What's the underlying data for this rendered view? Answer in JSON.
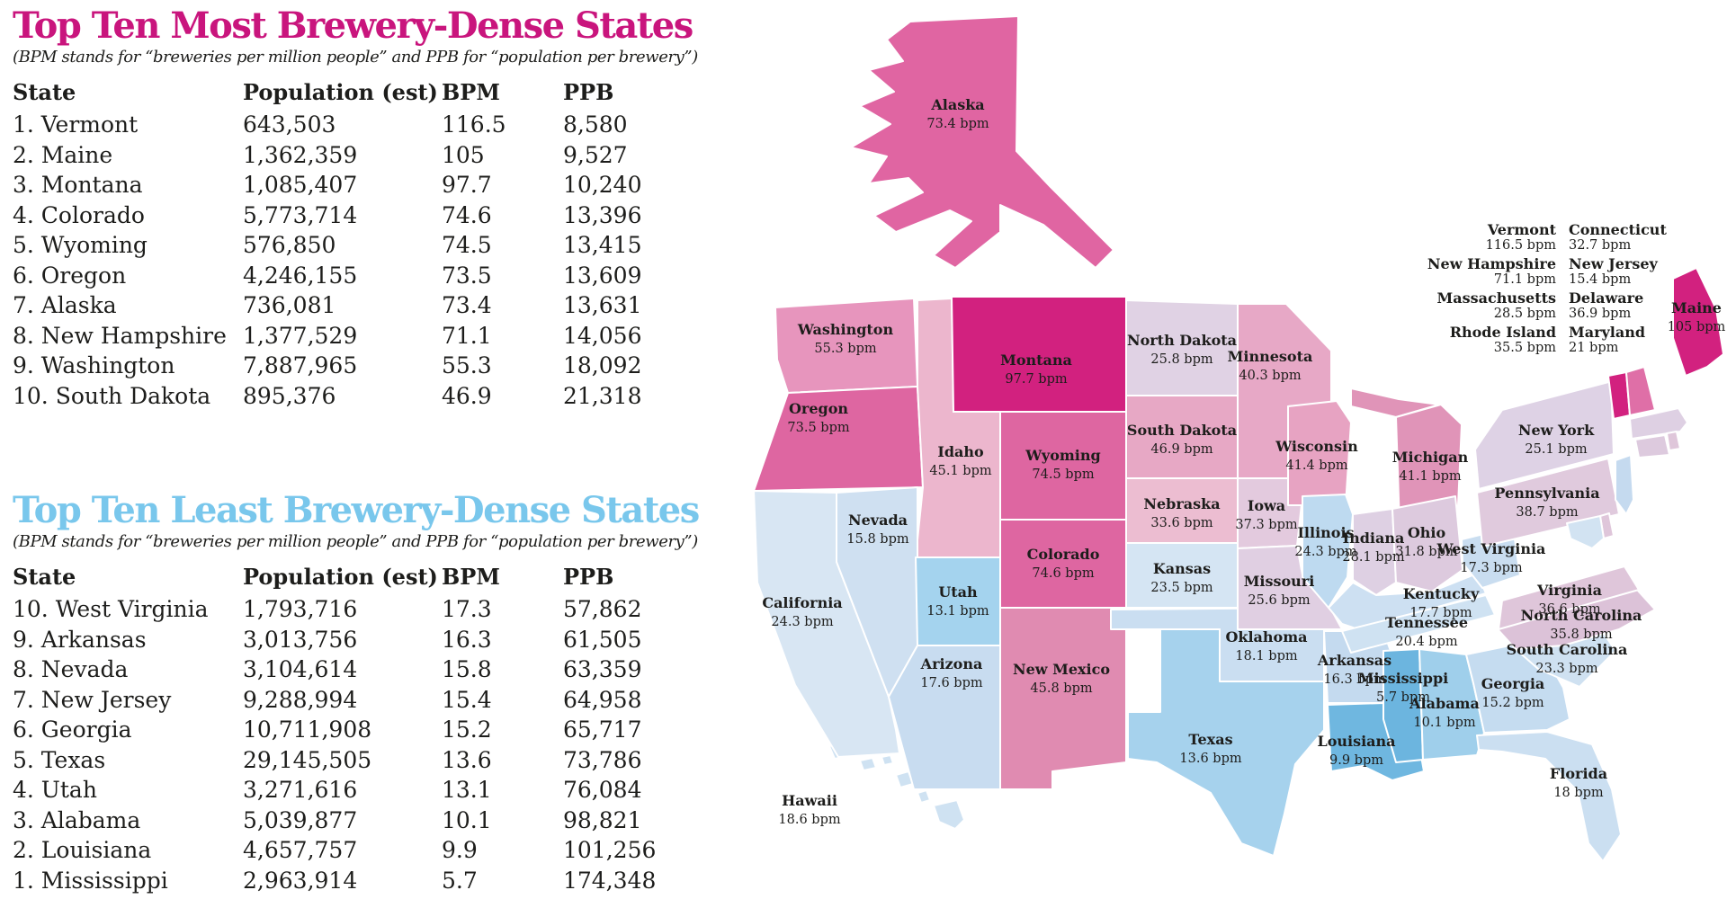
{
  "sections": [
    {
      "title": "Top Ten Most Brewery-Dense States",
      "subtitle": "(BPM stands for “breweries per million people” and PPB for “population per brewery”)",
      "accent_color": "#c9157d",
      "columns": [
        "State",
        "Population (est)",
        "BPM",
        "PPB"
      ],
      "rows": [
        [
          "1. Vermont",
          "643,503",
          "116.5",
          "8,580"
        ],
        [
          "2. Maine",
          "1,362,359",
          "105",
          "9,527"
        ],
        [
          "3. Montana",
          "1,085,407",
          "97.7",
          "10,240"
        ],
        [
          "4. Colorado",
          "5,773,714",
          "74.6",
          "13,396"
        ],
        [
          "5. Wyoming",
          "576,850",
          "74.5",
          "13,415"
        ],
        [
          "6. Oregon",
          "4,246,155",
          "73.5",
          "13,609"
        ],
        [
          "7. Alaska",
          "736,081",
          "73.4",
          "13,631"
        ],
        [
          "8. New Hampshire",
          "1,377,529",
          "71.1",
          "14,056"
        ],
        [
          "9. Washington",
          "7,887,965",
          "55.3",
          "18,092"
        ],
        [
          "10. South Dakota",
          "895,376",
          "46.9",
          "21,318"
        ]
      ]
    },
    {
      "title": "Top Ten Least Brewery-Dense States",
      "subtitle": "(BPM stands for “breweries per million people” and PPB for “population per brewery”)",
      "accent_color": "#79c7ec",
      "columns": [
        "State",
        "Population (est)",
        "BPM",
        "PPB"
      ],
      "rows": [
        [
          "10. West Virginia",
          "1,793,716",
          "17.3",
          "57,862"
        ],
        [
          "9. Arkansas",
          "3,013,756",
          "16.3",
          "61,505"
        ],
        [
          "8. Nevada",
          "3,104,614",
          "15.8",
          "63,359"
        ],
        [
          "7. New Jersey",
          "9,288,994",
          "15.4",
          "64,958"
        ],
        [
          "6. Georgia",
          "10,711,908",
          "15.2",
          "65,717"
        ],
        [
          "5. Texas",
          "29,145,505",
          "13.6",
          "73,786"
        ],
        [
          "4. Utah",
          "3,271,616",
          "13.1",
          "76,084"
        ],
        [
          "3. Alabama",
          "5,039,877",
          "10.1",
          "98,821"
        ],
        [
          "2. Louisiana",
          "4,657,757",
          "9.9",
          "101,256"
        ],
        [
          "1. Mississippi",
          "2,963,914",
          "5.7",
          "174,348"
        ]
      ]
    }
  ],
  "map": {
    "unit": "bpm",
    "states": [
      {
        "id": "AK",
        "name": "Alaska",
        "value": "73.4 bpm",
        "fill": "#e065a2"
      },
      {
        "id": "HI",
        "name": "Hawaii",
        "value": "18.6 bpm",
        "fill": "#cfe2f2"
      },
      {
        "id": "WA",
        "name": "Washington",
        "value": "55.3 bpm",
        "fill": "#e795bd"
      },
      {
        "id": "OR",
        "name": "Oregon",
        "value": "73.5 bpm",
        "fill": "#de66a1"
      },
      {
        "id": "CA",
        "name": "California",
        "value": "24.3 bpm",
        "fill": "#d8e6f3"
      },
      {
        "id": "ID",
        "name": "Idaho",
        "value": "45.1 bpm",
        "fill": "#ecb6cd"
      },
      {
        "id": "NV",
        "name": "Nevada",
        "value": "15.8 bpm",
        "fill": "#cfe0f1"
      },
      {
        "id": "MT",
        "name": "Montana",
        "value": "97.7 bpm",
        "fill": "#d2217f"
      },
      {
        "id": "WY",
        "name": "Wyoming",
        "value": "74.5 bpm",
        "fill": "#de66a1"
      },
      {
        "id": "UT",
        "name": "Utah",
        "value": "13.1 bpm",
        "fill": "#a4d3ee"
      },
      {
        "id": "CO",
        "name": "Colorado",
        "value": "74.6 bpm",
        "fill": "#de66a1"
      },
      {
        "id": "AZ",
        "name": "Arizona",
        "value": "17.6 bpm",
        "fill": "#c8dcf0"
      },
      {
        "id": "NM",
        "name": "New Mexico",
        "value": "45.8 bpm",
        "fill": "#e08bb1"
      },
      {
        "id": "ND",
        "name": "North Dakota",
        "value": "25.8 bpm",
        "fill": "#e0d2e4"
      },
      {
        "id": "SD",
        "name": "South Dakota",
        "value": "46.9 bpm",
        "fill": "#e7a8c5"
      },
      {
        "id": "NE",
        "name": "Nebraska",
        "value": "33.6 bpm",
        "fill": "#ecbdd1"
      },
      {
        "id": "KS",
        "name": "Kansas",
        "value": "23.5 bpm",
        "fill": "#d5e5f3"
      },
      {
        "id": "OK",
        "name": "Oklahoma",
        "value": "18.1 bpm",
        "fill": "#cadef1"
      },
      {
        "id": "TX",
        "name": "Texas",
        "value": "13.6 bpm",
        "fill": "#a6d2ed"
      },
      {
        "id": "MN",
        "name": "Minnesota",
        "value": "40.3 bpm",
        "fill": "#e7a8c6"
      },
      {
        "id": "IA",
        "name": "Iowa",
        "value": "37.3 bpm",
        "fill": "#e3cade"
      },
      {
        "id": "MO",
        "name": "Missouri",
        "value": "25.6 bpm",
        "fill": "#e0cfe2"
      },
      {
        "id": "AR",
        "name": "Arkansas",
        "value": "16.3 bpm",
        "fill": "#c4daef"
      },
      {
        "id": "LA",
        "name": "Louisiana",
        "value": "9.9 bpm",
        "fill": "#6fb7e0"
      },
      {
        "id": "WI",
        "name": "Wisconsin",
        "value": "41.4 bpm",
        "fill": "#e7a3c2"
      },
      {
        "id": "IL",
        "name": "Illinois",
        "value": "24.3 bpm",
        "fill": "#bedaf0"
      },
      {
        "id": "MIUP",
        "name": "",
        "value": "",
        "fill": "#e094b8"
      },
      {
        "id": "MI",
        "name": "Michigan",
        "value": "41.1 bpm",
        "fill": "#e094b8"
      },
      {
        "id": "IN",
        "name": "Indiana",
        "value": "28.1 bpm",
        "fill": "#ded0e3"
      },
      {
        "id": "OH",
        "name": "Ohio",
        "value": "31.8 bpm",
        "fill": "#ddcade"
      },
      {
        "id": "KY",
        "name": "Kentucky",
        "value": "17.7 bpm",
        "fill": "#cde0f2"
      },
      {
        "id": "TN",
        "name": "Tennessee",
        "value": "20.4 bpm",
        "fill": "#cfe2f2"
      },
      {
        "id": "MS",
        "name": "Mississippi",
        "value": "5.7 bpm",
        "fill": "#6cb5df"
      },
      {
        "id": "AL",
        "name": "Alabama",
        "value": "10.1 bpm",
        "fill": "#9fcfeb"
      },
      {
        "id": "GA",
        "name": "Georgia",
        "value": "15.2 bpm",
        "fill": "#c5dcf0"
      },
      {
        "id": "FL",
        "name": "Florida",
        "value": "18 bpm",
        "fill": "#cbdff1"
      },
      {
        "id": "SC",
        "name": "South Carolina",
        "value": "23.3 bpm",
        "fill": "#cfe1f1"
      },
      {
        "id": "NC",
        "name": "North Carolina",
        "value": "35.8 bpm",
        "fill": "#dcc2d8"
      },
      {
        "id": "VA",
        "name": "Virginia",
        "value": "36.6 bpm",
        "fill": "#dfc6da"
      },
      {
        "id": "WV",
        "name": "West Virginia",
        "value": "17.3 bpm",
        "fill": "#c9ddf0"
      },
      {
        "id": "PA",
        "name": "Pennsylvania",
        "value": "38.7 bpm",
        "fill": "#e0cadd"
      },
      {
        "id": "NY",
        "name": "New York",
        "value": "25.1 bpm",
        "fill": "#ded2e5"
      },
      {
        "id": "VT",
        "name": "Vermont",
        "value": "116.5 bpm",
        "fill": "#d2217f"
      },
      {
        "id": "NH",
        "name": "New Hampshire",
        "value": "71.1 bpm",
        "fill": "#df6fa7"
      },
      {
        "id": "ME",
        "name": "Maine",
        "value": "105 bpm",
        "fill": "#d2217f"
      },
      {
        "id": "MA",
        "name": "Massachusetts",
        "value": "28.5 bpm",
        "fill": "#ded0e3"
      },
      {
        "id": "RI",
        "name": "Rhode Island",
        "value": "35.5 bpm",
        "fill": "#dfc6da"
      },
      {
        "id": "CT",
        "name": "Connecticut",
        "value": "32.7 bpm",
        "fill": "#ddcade"
      },
      {
        "id": "NJ",
        "name": "New Jersey",
        "value": "15.4 bpm",
        "fill": "#c5daef"
      },
      {
        "id": "DE",
        "name": "Delaware",
        "value": "36.9 bpm",
        "fill": "#dfc6da"
      },
      {
        "id": "MD",
        "name": "Maryland",
        "value": "21 bpm",
        "fill": "#d2e3f2"
      }
    ],
    "callouts": {
      "left_column": [
        {
          "name": "Vermont",
          "value": "116.5 bpm"
        },
        {
          "name": "New Hampshire",
          "value": "71.1 bpm"
        },
        {
          "name": "Massachusetts",
          "value": "28.5 bpm"
        },
        {
          "name": "Rhode Island",
          "value": "35.5 bpm"
        }
      ],
      "right_column": [
        {
          "name": "Connecticut",
          "value": "32.7 bpm"
        },
        {
          "name": "New Jersey",
          "value": "15.4 bpm"
        },
        {
          "name": "Delaware",
          "value": "36.9 bpm"
        },
        {
          "name": "Maryland",
          "value": "21 bpm"
        }
      ]
    }
  }
}
